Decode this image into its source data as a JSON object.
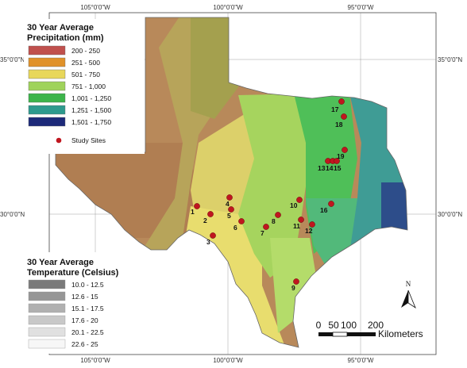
{
  "graticule": {
    "top": [
      "105°0'0\"W",
      "100°0'0\"W",
      "95°0'0\"W"
    ],
    "bottom": [
      "105°0'0\"W",
      "100°0'0\"W",
      "95°0'0\"W"
    ],
    "left": [
      "35°0'0\"N",
      "30°0'0\"N"
    ],
    "right": [
      "35°0'0\"N",
      "30°0'0\"N"
    ]
  },
  "precip_legend": {
    "title_line1": "30 Year Average",
    "title_line2": "Precipitation (mm)",
    "classes": [
      {
        "label": "200 - 250",
        "color": "#c0504d"
      },
      {
        "label": "251 - 500",
        "color": "#e0922a"
      },
      {
        "label": "501 - 750",
        "color": "#e8d75a"
      },
      {
        "label": "751 - 1,000",
        "color": "#9fd35b"
      },
      {
        "label": "1,001 - 1,250",
        "color": "#3cb44a"
      },
      {
        "label": "1,251 - 1,500",
        "color": "#2e9a8e"
      },
      {
        "label": "1,501 - 1,750",
        "color": "#1d2a7a"
      }
    ],
    "sites_label": "Study Sites",
    "site_color": "#c0161f"
  },
  "temp_legend": {
    "title_line1": "30 Year Average",
    "title_line2": "Temperature (Celsius)",
    "classes": [
      {
        "label": "10.0 - 12.5",
        "color": "#7a7a7a"
      },
      {
        "label": "12.6 - 15",
        "color": "#969696"
      },
      {
        "label": "15.1 - 17.5",
        "color": "#b0b0b0"
      },
      {
        "label": "17.6 - 20",
        "color": "#c8c8c8"
      },
      {
        "label": "20.1 - 22.5",
        "color": "#e0e0e0"
      },
      {
        "label": "22.6 - 25",
        "color": "#f7f7f7"
      }
    ]
  },
  "sites": [
    "1",
    "2",
    "3",
    "4",
    "5",
    "6",
    "7",
    "8",
    "9",
    "10",
    "11",
    "12",
    "13",
    "14",
    "15",
    "16",
    "17",
    "18",
    "19"
  ],
  "north_label": "N",
  "scale": {
    "ticks": [
      "0",
      "50",
      "100",
      "200"
    ],
    "unit": "Kilometers"
  }
}
